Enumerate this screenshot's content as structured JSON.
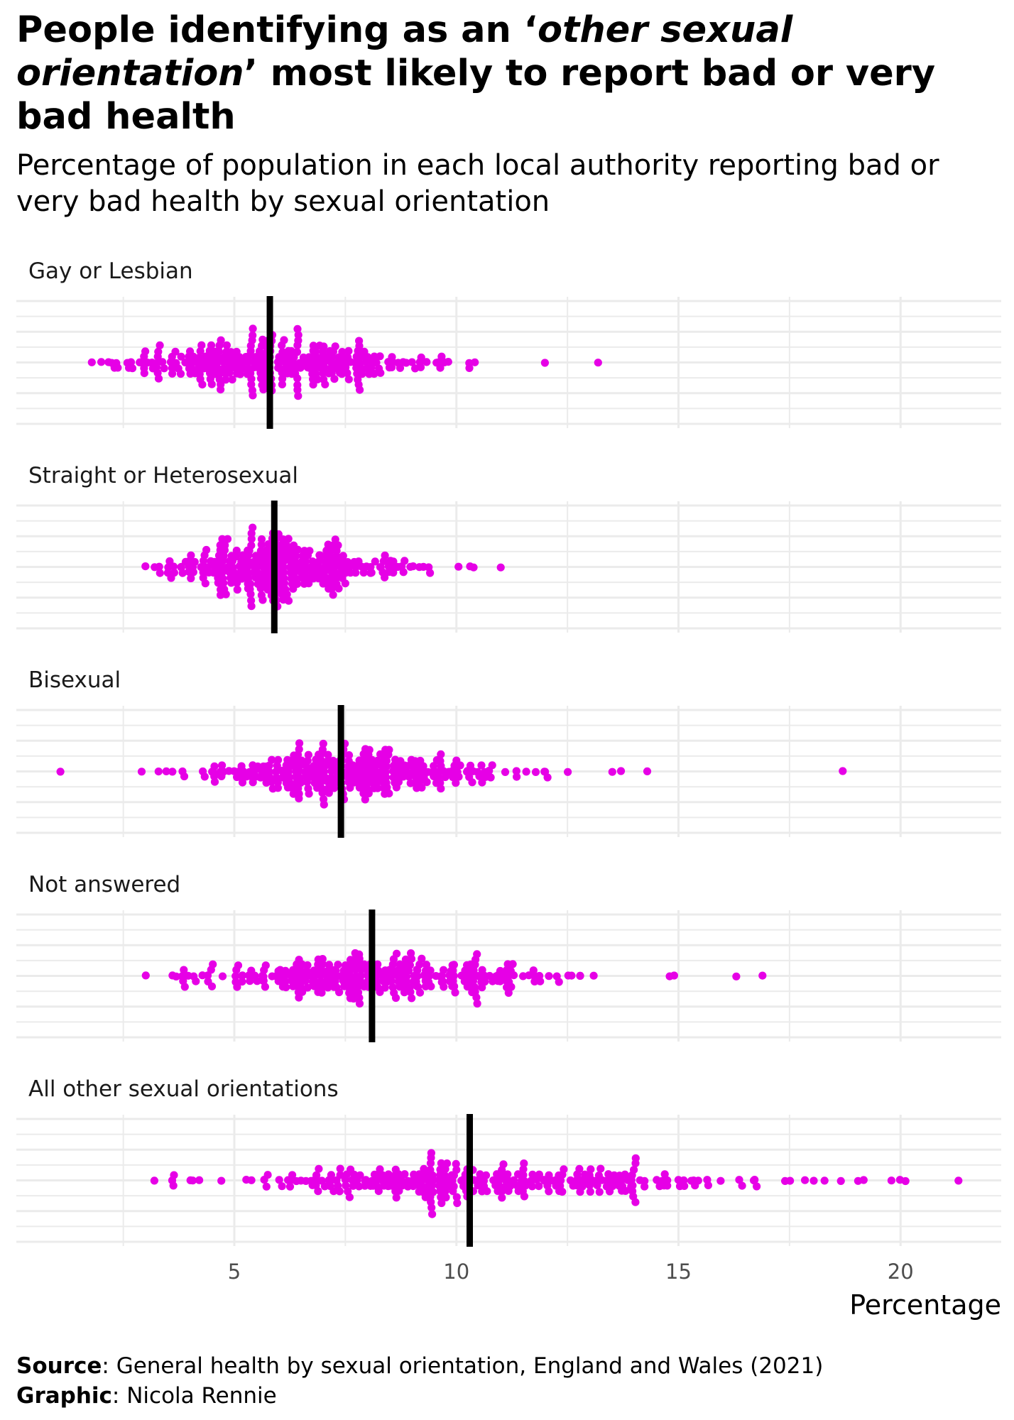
{
  "title": {
    "part1": "People identifying as an ‘",
    "italic1": "other sexual orientation",
    "part2": "’ most likely to report bad or very bad health"
  },
  "subtitle": "Percentage of population in each local authority reporting bad or very bad health by sexual orientation",
  "caption": {
    "source_label": "Source",
    "source_text": ": General health by sexual orientation, England and Wales (2021)",
    "graphic_label": "Graphic",
    "graphic_text": ": Nicola Rennie"
  },
  "colors": {
    "point": "#E600E6",
    "median": "#000000",
    "grid": "#EBEBEB"
  },
  "chart_data": {
    "type": "beeswarm",
    "xlabel": "Percentage",
    "ylabel": "",
    "xlim": [
      0.4,
      22.7
    ],
    "x_ticks": [
      5,
      10,
      15,
      20
    ],
    "grid": true,
    "median_marker": "vertical black line",
    "panels": [
      {
        "name": "Gay or Lesbian",
        "median": 5.8,
        "min": 1.8,
        "max": 13.2,
        "spread": 1.6,
        "outliers": [
          1.8,
          2.0,
          2.3,
          10.3,
          10.4,
          12.0,
          13.2
        ],
        "n_points": 300
      },
      {
        "name": "Straight or Heterosexual",
        "median": 5.9,
        "min": 3.0,
        "max": 11.0,
        "spread": 1.3,
        "outliers": [
          3.0,
          3.2,
          10.3,
          10.4,
          11.0
        ],
        "n_points": 300
      },
      {
        "name": "Bisexual",
        "median": 7.4,
        "min": 1.1,
        "max": 18.7,
        "spread": 1.7,
        "outliers": [
          1.1,
          2.9,
          12.0,
          12.5,
          13.5,
          13.7,
          14.3,
          18.7
        ],
        "n_points": 300
      },
      {
        "name": "Not answered",
        "median": 8.1,
        "min": 3.0,
        "max": 16.9,
        "spread": 1.9,
        "outliers": [
          3.0,
          3.6,
          3.7,
          4.5,
          14.8,
          14.9,
          16.3,
          16.9
        ],
        "n_points": 300
      },
      {
        "name": "All other sexual orientations",
        "median": 10.3,
        "min": 3.2,
        "max": 21.3,
        "spread": 2.8,
        "outliers": [
          3.2,
          4.0,
          18.3,
          19.8,
          20.0,
          20.1,
          21.3
        ],
        "n_points": 300
      }
    ]
  }
}
